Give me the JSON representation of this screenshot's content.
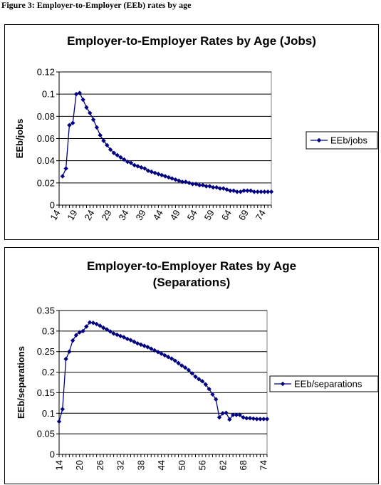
{
  "figure_caption": "Figure 3: Employer-to-Employer (EEb) rates by age",
  "colors": {
    "series": "#000080",
    "plot_border": "#808080",
    "grid": "#000000"
  },
  "chart_data": [
    {
      "type": "line",
      "title": "Employer-to-Employer Rates by Age (Jobs)",
      "title_lines": [
        "Employer-to-Employer Rates by Age (Jobs)"
      ],
      "xlabel": "",
      "ylabel": "EEb/jobs",
      "ylim": [
        0,
        0.12
      ],
      "yticks": [
        "0",
        "0.02",
        "0.04",
        "0.06",
        "0.08",
        "0.1",
        "0.12"
      ],
      "xticks": [
        "14",
        "19",
        "24",
        "29",
        "34",
        "39",
        "44",
        "49",
        "54",
        "59",
        "64",
        "69",
        "74"
      ],
      "xlim": [
        14,
        76
      ],
      "grid": "horizontal",
      "legend_position": "right",
      "series": [
        {
          "name": "EEb/jobs",
          "x": [
            15,
            16,
            17,
            18,
            19,
            20,
            21,
            22,
            23,
            24,
            25,
            26,
            27,
            28,
            29,
            30,
            31,
            32,
            33,
            34,
            35,
            36,
            37,
            38,
            39,
            40,
            41,
            42,
            43,
            44,
            45,
            46,
            47,
            48,
            49,
            50,
            51,
            52,
            53,
            54,
            55,
            56,
            57,
            58,
            59,
            60,
            61,
            62,
            63,
            64,
            65,
            66,
            67,
            68,
            69,
            70,
            71,
            72,
            73,
            74,
            75,
            76
          ],
          "values": [
            0.026,
            0.033,
            0.072,
            0.074,
            0.1,
            0.101,
            0.095,
            0.088,
            0.083,
            0.077,
            0.07,
            0.063,
            0.058,
            0.054,
            0.05,
            0.047,
            0.045,
            0.043,
            0.041,
            0.039,
            0.038,
            0.036,
            0.035,
            0.034,
            0.033,
            0.031,
            0.03,
            0.029,
            0.028,
            0.027,
            0.026,
            0.025,
            0.024,
            0.023,
            0.022,
            0.021,
            0.021,
            0.02,
            0.019,
            0.019,
            0.018,
            0.018,
            0.017,
            0.017,
            0.016,
            0.016,
            0.015,
            0.015,
            0.014,
            0.013,
            0.013,
            0.012,
            0.012,
            0.013,
            0.013,
            0.013,
            0.012,
            0.012,
            0.012,
            0.012,
            0.012,
            0.012
          ]
        }
      ]
    },
    {
      "type": "line",
      "title": "Employer-to-Employer Rates by Age (Separations)",
      "title_lines": [
        "Employer-to-Employer Rates by Age",
        "(Separations)"
      ],
      "xlabel": "",
      "ylabel": "EEb/separations",
      "ylim": [
        0,
        0.35
      ],
      "yticks": [
        "0",
        "0.05",
        "0.1",
        "0.15",
        "0.2",
        "0.25",
        "0.3",
        "0.35"
      ],
      "xticks": [
        "14",
        "20",
        "26",
        "32",
        "38",
        "44",
        "50",
        "56",
        "62",
        "68",
        "74"
      ],
      "xlim": [
        14,
        75
      ],
      "grid": "horizontal",
      "legend_position": "right",
      "series": [
        {
          "name": "EEb/separations",
          "x": [
            14,
            15,
            16,
            17,
            18,
            19,
            20,
            21,
            22,
            23,
            24,
            25,
            26,
            27,
            28,
            29,
            30,
            31,
            32,
            33,
            34,
            35,
            36,
            37,
            38,
            39,
            40,
            41,
            42,
            43,
            44,
            45,
            46,
            47,
            48,
            49,
            50,
            51,
            52,
            53,
            54,
            55,
            56,
            57,
            58,
            59,
            60,
            61,
            62,
            63,
            64,
            65,
            66,
            67,
            68,
            69,
            70,
            71,
            72,
            73,
            74,
            75
          ],
          "values": [
            0.08,
            0.11,
            0.232,
            0.25,
            0.277,
            0.29,
            0.297,
            0.3,
            0.311,
            0.321,
            0.32,
            0.317,
            0.313,
            0.308,
            0.304,
            0.299,
            0.294,
            0.291,
            0.288,
            0.285,
            0.281,
            0.278,
            0.274,
            0.27,
            0.267,
            0.264,
            0.261,
            0.257,
            0.253,
            0.249,
            0.245,
            0.241,
            0.237,
            0.233,
            0.228,
            0.222,
            0.216,
            0.211,
            0.205,
            0.197,
            0.189,
            0.183,
            0.178,
            0.17,
            0.159,
            0.146,
            0.134,
            0.09,
            0.1,
            0.101,
            0.085,
            0.096,
            0.096,
            0.096,
            0.09,
            0.088,
            0.088,
            0.087,
            0.086,
            0.086,
            0.086,
            0.086
          ]
        }
      ]
    }
  ]
}
